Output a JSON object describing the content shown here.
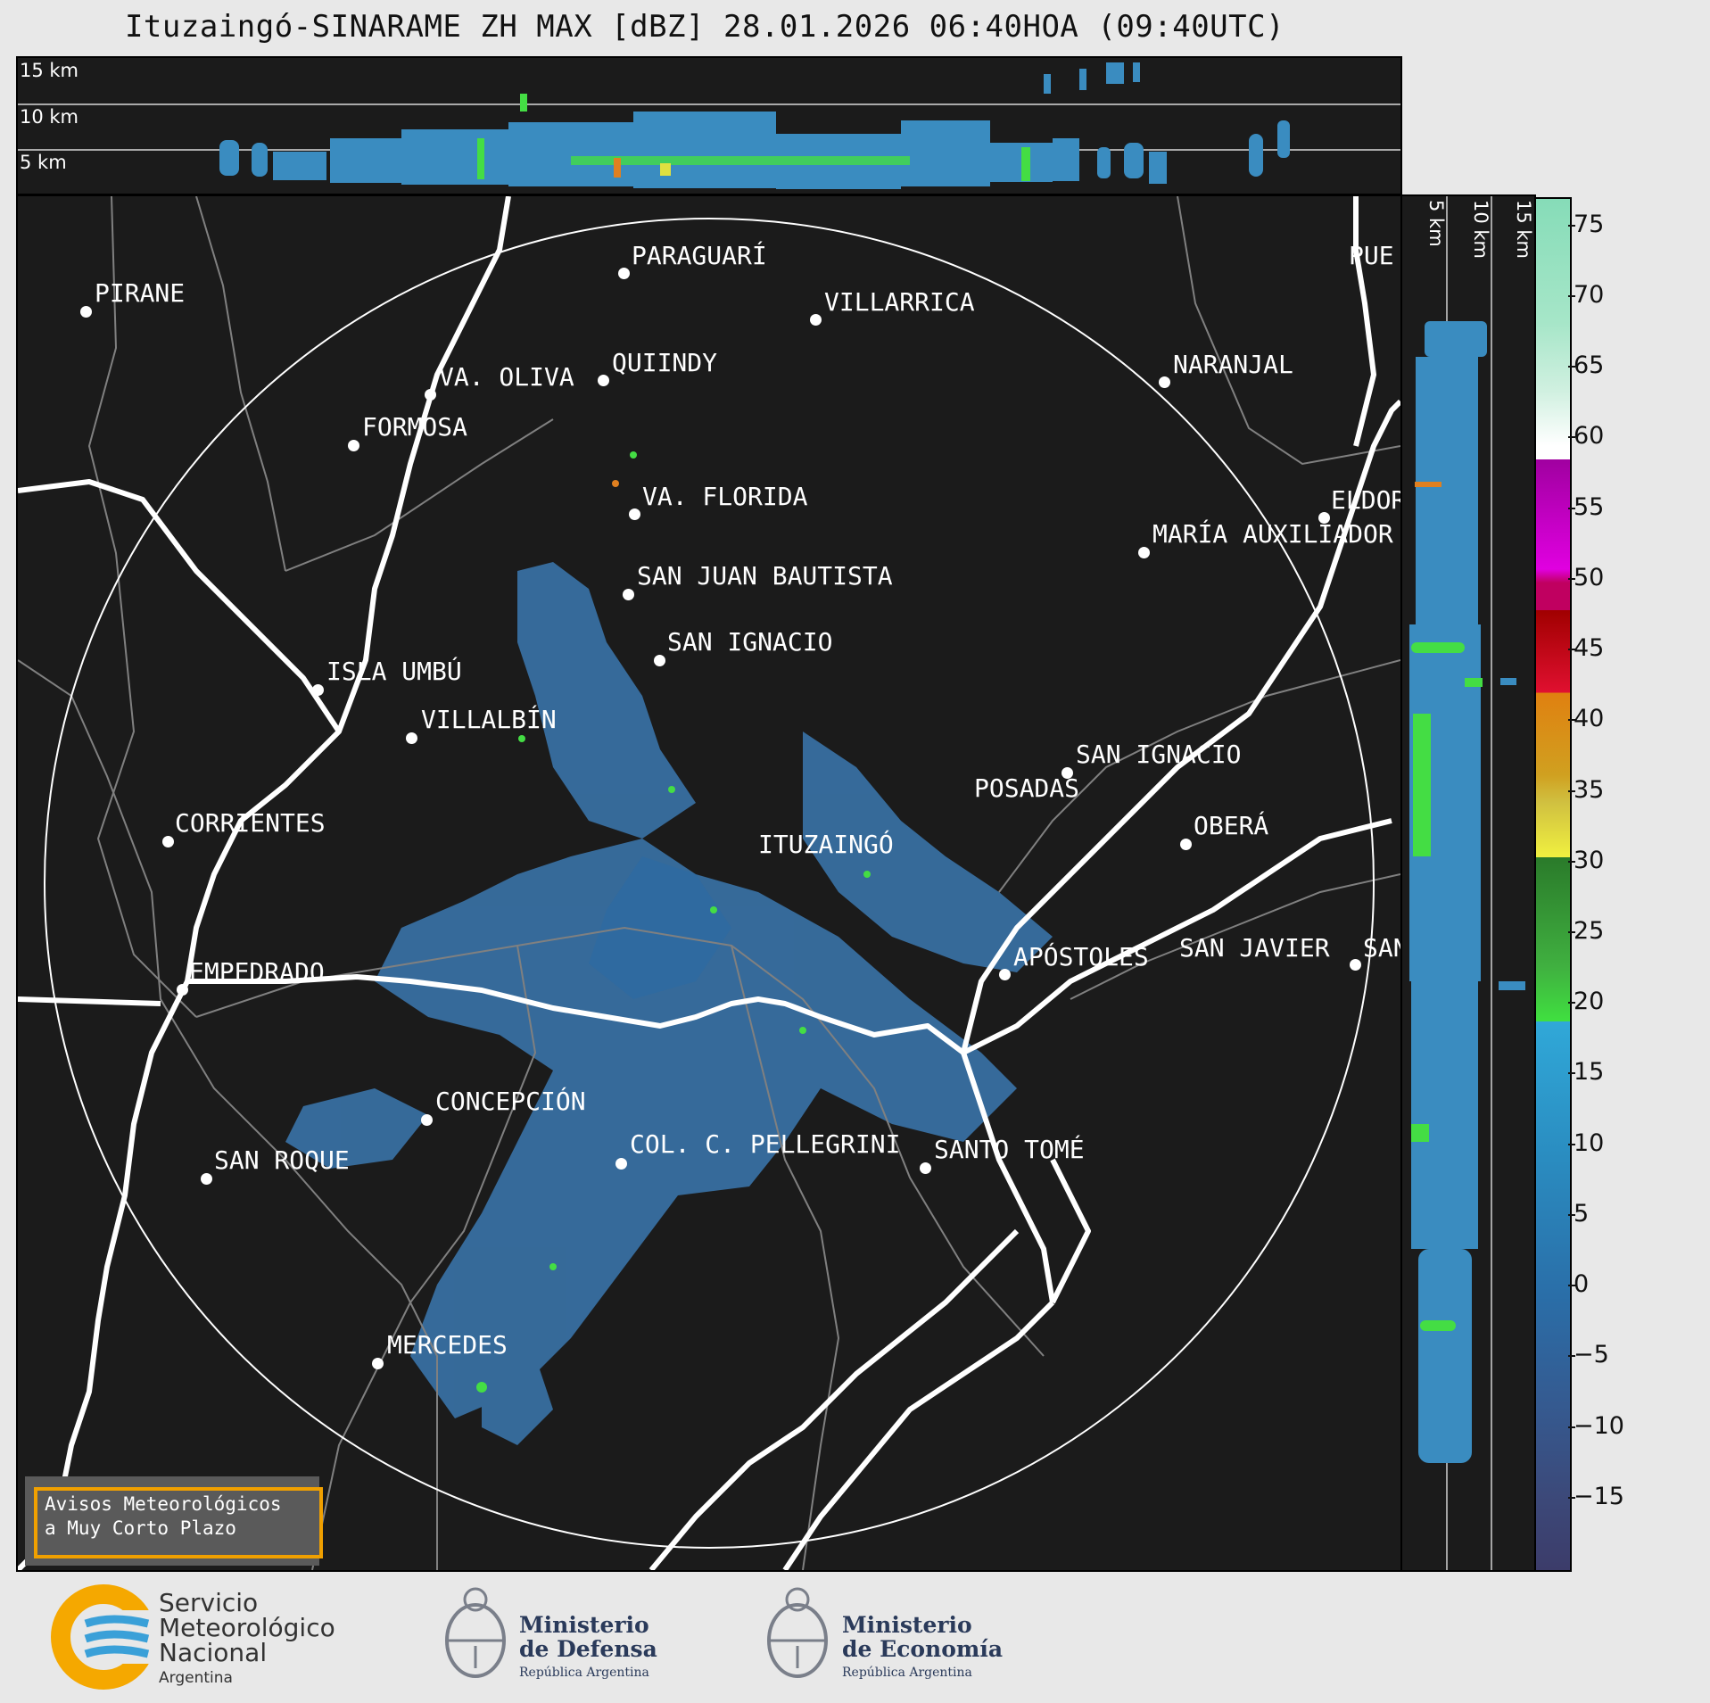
{
  "title": "Ituzaingó-SINARAME ZH MAX [dBZ] 28.01.2026 06:40HOA (09:40UTC)",
  "top_panel": {
    "altitude_labels": [
      "15 km",
      "10 km",
      "5 km"
    ]
  },
  "side_panel": {
    "altitude_labels": [
      "5 km",
      "10 km",
      "15 km"
    ]
  },
  "colorbar": {
    "unit": "dBZ",
    "ticks": [
      "75",
      "70",
      "65",
      "60",
      "55",
      "50",
      "45",
      "40",
      "35",
      "30",
      "25",
      "20",
      "15",
      "10",
      "5",
      "0",
      "−5",
      "−10",
      "−15"
    ],
    "range": [
      -20,
      77
    ]
  },
  "cities": [
    {
      "name": "PARAGUARÍ"
    },
    {
      "name": "PIRANE"
    },
    {
      "name": "VILLARRICA"
    },
    {
      "name": "QUIINDY"
    },
    {
      "name": "VA. OLIVA"
    },
    {
      "name": "NARANJAL"
    },
    {
      "name": "FORMOSA"
    },
    {
      "name": "VA. FLORIDA"
    },
    {
      "name": "ELDOR"
    },
    {
      "name": "MARÍA AUXILIADOR"
    },
    {
      "name": "SAN JUAN BAUTISTA"
    },
    {
      "name": "SAN IGNACIO"
    },
    {
      "name": "ISLA UMBÚ"
    },
    {
      "name": "VILLALBÍN"
    },
    {
      "name": "SAN IGNACIO"
    },
    {
      "name": "POSADAS"
    },
    {
      "name": "CORRIENTES"
    },
    {
      "name": "ITUZAINGÓ"
    },
    {
      "name": "OBERÁ"
    },
    {
      "name": "APÓSTOLES"
    },
    {
      "name": "SAN JAVIER"
    },
    {
      "name": "SAN"
    },
    {
      "name": "EMPEDRADO"
    },
    {
      "name": "CONCEPCIÓN"
    },
    {
      "name": "COL. C. PELLEGRINI"
    },
    {
      "name": "SANTO TOMÉ"
    },
    {
      "name": "SAN ROQUE"
    },
    {
      "name": "MERCEDES"
    },
    {
      "name": "PUE"
    }
  ],
  "notice": {
    "line1": "Avisos Meteorológicos",
    "line2": "a Muy Corto Plazo"
  },
  "footer": {
    "smn": {
      "line1": "Servicio",
      "line2": "Meteorológico",
      "line3": "Nacional",
      "line4": "Argentina"
    },
    "defensa": {
      "line1": "Ministerio",
      "line2": "de Defensa",
      "line3": "República Argentina"
    },
    "economia": {
      "line1": "Ministerio",
      "line2": "de Economía",
      "line3": "República Argentina"
    }
  },
  "colors": {
    "background": "#1b1b1b",
    "rivers": "#ffffff",
    "borders": "#808080",
    "echo": "#3d7fb8"
  }
}
